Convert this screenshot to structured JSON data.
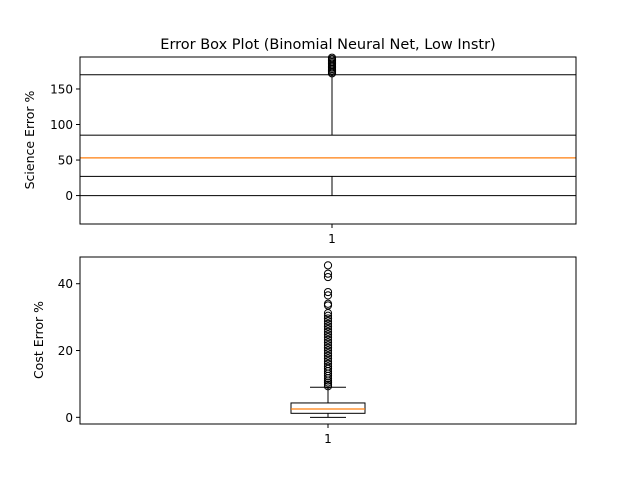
{
  "chart_data": [
    {
      "type": "box",
      "title": "Error Box Plot (Binomial Neural Net, Low Instr)",
      "xlabel": "",
      "ylabel": "Science Error %",
      "categories": [
        "1"
      ],
      "ylim": [
        -40,
        195
      ],
      "yticks": [
        0,
        50,
        100,
        150
      ],
      "box": {
        "whisker_low": 0,
        "q1": 27,
        "median": 53,
        "q3": 85,
        "whisker_high": 170
      },
      "outliers": [
        172,
        174,
        176,
        178,
        180,
        182,
        184,
        186,
        188,
        190,
        192,
        194
      ],
      "colors": {
        "median": "#ff7f0e",
        "box": "#000000"
      }
    },
    {
      "type": "box",
      "title": "",
      "xlabel": "",
      "ylabel": "Cost Error %",
      "categories": [
        "1"
      ],
      "ylim": [
        -2,
        48
      ],
      "yticks": [
        0,
        20,
        40
      ],
      "box": {
        "whisker_low": 0,
        "q1": 1.2,
        "median": 2.5,
        "q3": 4.3,
        "whisker_high": 9
      },
      "outliers": [
        9.3,
        9.8,
        10.4,
        11,
        11.7,
        12.4,
        13.1,
        13.8,
        14.5,
        15.2,
        16,
        16.8,
        17.6,
        18.4,
        19.2,
        20,
        20.8,
        21.6,
        22.4,
        23.2,
        24,
        24.8,
        25.6,
        26.4,
        27.2,
        28,
        28.8,
        29.6,
        30.4,
        31.2,
        33.5,
        34,
        36.5,
        37.5,
        42,
        43,
        45.5
      ],
      "colors": {
        "median": "#ff7f0e",
        "box": "#000000"
      }
    }
  ]
}
